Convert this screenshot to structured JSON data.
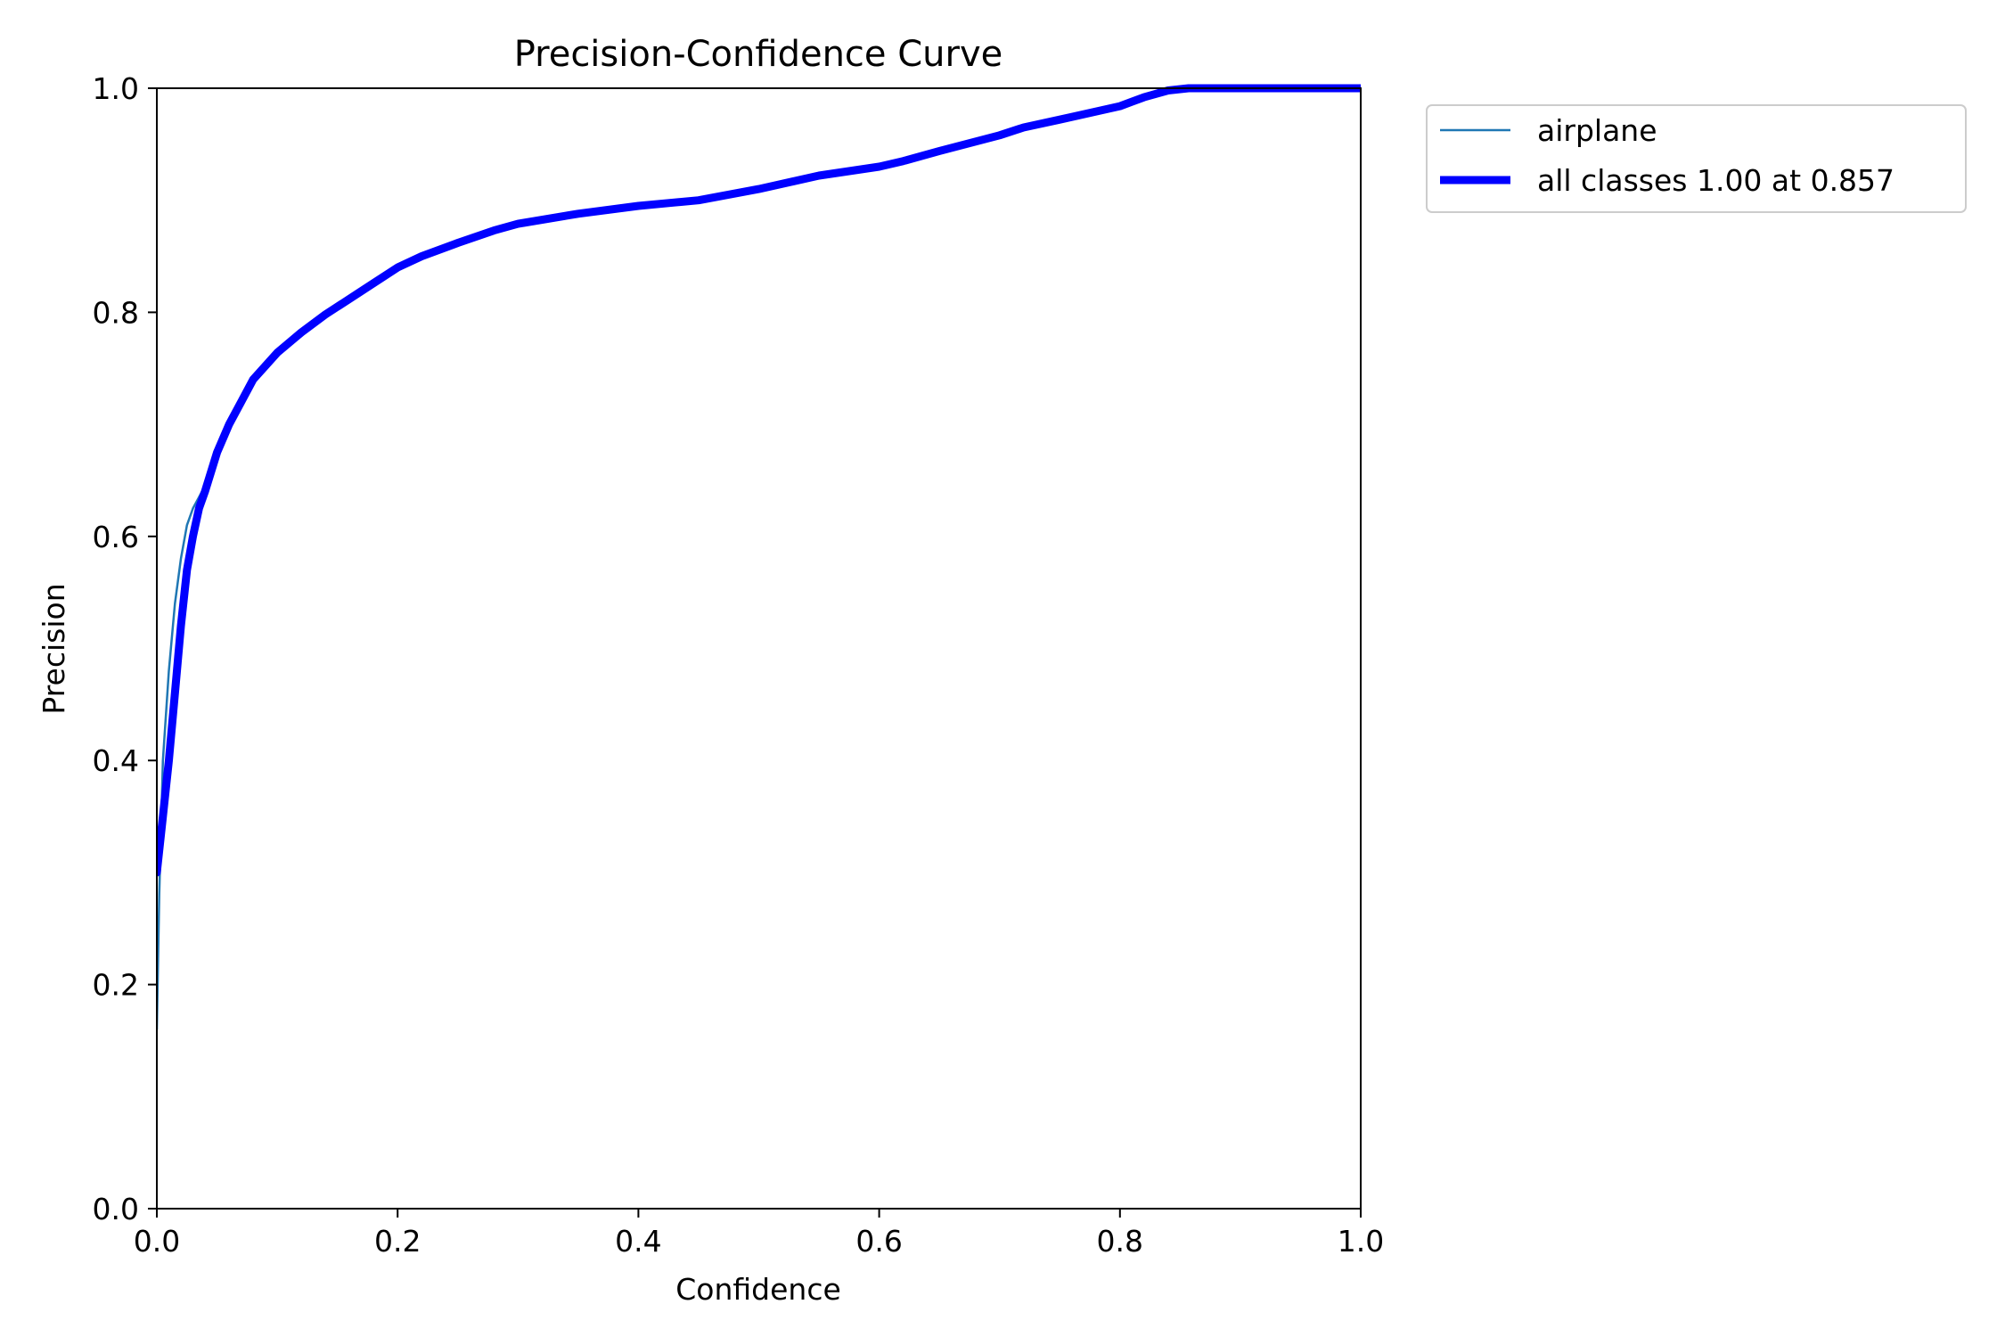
{
  "chart_data": {
    "type": "line",
    "title": "Precision-Confidence Curve",
    "xlabel": "Confidence",
    "ylabel": "Precision",
    "xlim": [
      0.0,
      1.0
    ],
    "ylim": [
      0.0,
      1.0
    ],
    "xticks": [
      "0.0",
      "0.2",
      "0.4",
      "0.6",
      "0.8",
      "1.0"
    ],
    "yticks": [
      "0.0",
      "0.2",
      "0.4",
      "0.6",
      "0.8",
      "1.0"
    ],
    "grid": false,
    "legend_position": "outside-top-right",
    "series": [
      {
        "name": "airplane",
        "color": "#1f77b4",
        "x": [
          0.0,
          0.002,
          0.005,
          0.01,
          0.015,
          0.02,
          0.025,
          0.03,
          0.035,
          0.04,
          0.05,
          0.06,
          0.07,
          0.08,
          0.09,
          0.1,
          0.12,
          0.14,
          0.16,
          0.18,
          0.2,
          0.22,
          0.25,
          0.28,
          0.3,
          0.35,
          0.4,
          0.43,
          0.45,
          0.5,
          0.55,
          0.6,
          0.62,
          0.65,
          0.7,
          0.72,
          0.75,
          0.8,
          0.82,
          0.84,
          0.857,
          0.9,
          0.95,
          1.0
        ],
        "y": [
          0.16,
          0.28,
          0.4,
          0.48,
          0.54,
          0.58,
          0.61,
          0.625,
          0.635,
          0.645,
          0.675,
          0.7,
          0.72,
          0.74,
          0.752,
          0.764,
          0.782,
          0.798,
          0.812,
          0.826,
          0.84,
          0.85,
          0.862,
          0.873,
          0.879,
          0.888,
          0.895,
          0.898,
          0.9,
          0.91,
          0.922,
          0.93,
          0.935,
          0.944,
          0.958,
          0.965,
          0.972,
          0.984,
          0.992,
          0.998,
          1.0,
          1.0,
          1.0,
          1.0
        ]
      },
      {
        "name": "all classes 1.00 at 0.857",
        "color": "#0000ff",
        "x": [
          0.0,
          0.005,
          0.01,
          0.015,
          0.02,
          0.025,
          0.03,
          0.035,
          0.04,
          0.05,
          0.06,
          0.07,
          0.08,
          0.09,
          0.1,
          0.12,
          0.14,
          0.16,
          0.18,
          0.2,
          0.22,
          0.25,
          0.28,
          0.3,
          0.35,
          0.4,
          0.43,
          0.45,
          0.5,
          0.55,
          0.6,
          0.62,
          0.65,
          0.7,
          0.72,
          0.75,
          0.8,
          0.82,
          0.84,
          0.857,
          0.9,
          0.95,
          1.0
        ],
        "y": [
          0.3,
          0.35,
          0.4,
          0.46,
          0.52,
          0.57,
          0.6,
          0.625,
          0.64,
          0.675,
          0.7,
          0.72,
          0.74,
          0.752,
          0.764,
          0.782,
          0.798,
          0.812,
          0.826,
          0.84,
          0.85,
          0.862,
          0.873,
          0.879,
          0.888,
          0.895,
          0.898,
          0.9,
          0.91,
          0.922,
          0.93,
          0.935,
          0.944,
          0.958,
          0.965,
          0.972,
          0.984,
          0.992,
          0.998,
          1.0,
          1.0,
          1.0,
          1.0
        ]
      }
    ]
  }
}
